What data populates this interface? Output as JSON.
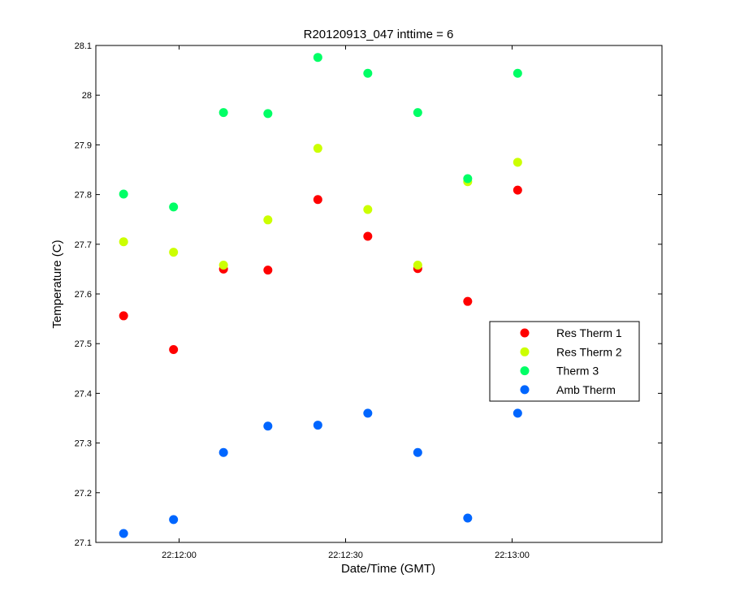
{
  "chart_data": {
    "type": "scatter",
    "title": "R20120913_047 inttime = 6",
    "xlabel": "Date/Time (GMT)",
    "ylabel": "Temperature (C)",
    "x_axis": {
      "type": "time",
      "range": [
        "22:11:45",
        "22:13:27"
      ],
      "ticks": [
        "22:12:00",
        "22:12:30",
        "22:13:00"
      ]
    },
    "ylim": [
      27.1,
      28.1
    ],
    "yticks": [
      "27.1",
      "27.2",
      "27.3",
      "27.4",
      "27.5",
      "27.6",
      "27.7",
      "27.8",
      "27.9",
      "28",
      "28.1"
    ],
    "grid": false,
    "legend_position": "right",
    "x": [
      "22:11:50",
      "22:11:59",
      "22:12:08",
      "22:12:16",
      "22:12:25",
      "22:12:34",
      "22:12:43",
      "22:12:52",
      "22:13:01"
    ],
    "series": [
      {
        "name": "Res Therm 1",
        "color": "#ff0000",
        "values": [
          27.556,
          27.488,
          27.65,
          27.648,
          27.79,
          27.716,
          27.651,
          27.585,
          27.809
        ]
      },
      {
        "name": "Res Therm 2",
        "color": "#ccff00",
        "values": [
          27.705,
          27.684,
          27.658,
          27.749,
          27.893,
          27.77,
          27.658,
          27.826,
          27.865
        ]
      },
      {
        "name": "Therm 3",
        "color": "#00ff66",
        "values": [
          27.801,
          27.775,
          27.965,
          27.963,
          28.076,
          28.044,
          27.965,
          27.832,
          28.044
        ]
      },
      {
        "name": "Amb Therm",
        "color": "#0066ff",
        "values": [
          27.118,
          27.146,
          27.281,
          27.334,
          27.336,
          27.36,
          27.281,
          27.149,
          27.36
        ]
      }
    ]
  }
}
